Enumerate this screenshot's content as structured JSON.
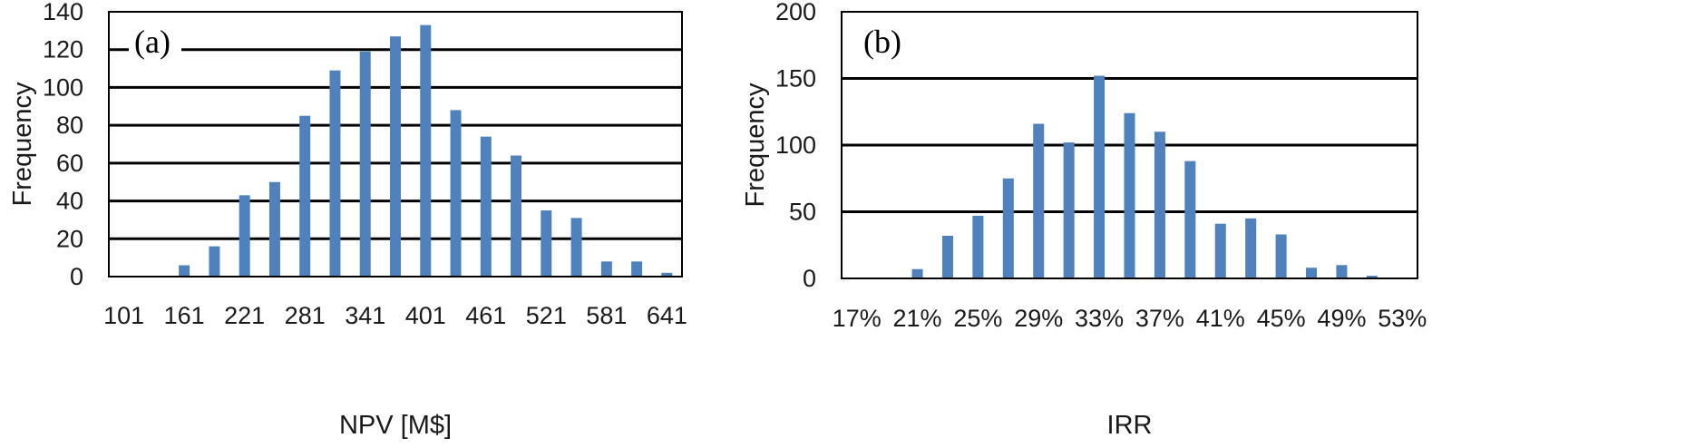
{
  "chart_data": [
    {
      "type": "bar",
      "panel_label": "(a)",
      "xlabel": "NPV [M$]",
      "ylabel": "Frequency",
      "ylim": [
        0,
        140
      ],
      "yticks": [
        0,
        20,
        40,
        60,
        80,
        100,
        120,
        140
      ],
      "categories": [
        "101",
        "131",
        "161",
        "191",
        "221",
        "251",
        "281",
        "311",
        "341",
        "371",
        "401",
        "431",
        "461",
        "491",
        "521",
        "551",
        "581",
        "611",
        "641"
      ],
      "xtick_labels": [
        "101",
        "161",
        "221",
        "281",
        "341",
        "401",
        "461",
        "521",
        "581",
        "641"
      ],
      "values": [
        0,
        0,
        6,
        16,
        43,
        50,
        85,
        109,
        119,
        127,
        133,
        88,
        74,
        64,
        35,
        31,
        8,
        8,
        2
      ],
      "grid": "horizontal",
      "bar_color": "#4f81bd"
    },
    {
      "type": "bar",
      "panel_label": "(b)",
      "xlabel": "IRR",
      "ylabel": "Frequency",
      "ylim": [
        0,
        200
      ],
      "yticks": [
        0,
        50,
        100,
        150,
        200
      ],
      "categories": [
        "17%",
        "19%",
        "21%",
        "23%",
        "25%",
        "27%",
        "29%",
        "31%",
        "33%",
        "35%",
        "37%",
        "39%",
        "41%",
        "43%",
        "45%",
        "47%",
        "49%",
        "51%",
        "53%"
      ],
      "xtick_labels": [
        "17%",
        "21%",
        "25%",
        "29%",
        "33%",
        "37%",
        "41%",
        "45%",
        "49%",
        "53%"
      ],
      "values": [
        0,
        0,
        7,
        32,
        47,
        75,
        116,
        102,
        152,
        124,
        110,
        88,
        41,
        45,
        33,
        8,
        10,
        2,
        0
      ],
      "grid": "horizontal",
      "bar_color": "#4f81bd"
    }
  ]
}
